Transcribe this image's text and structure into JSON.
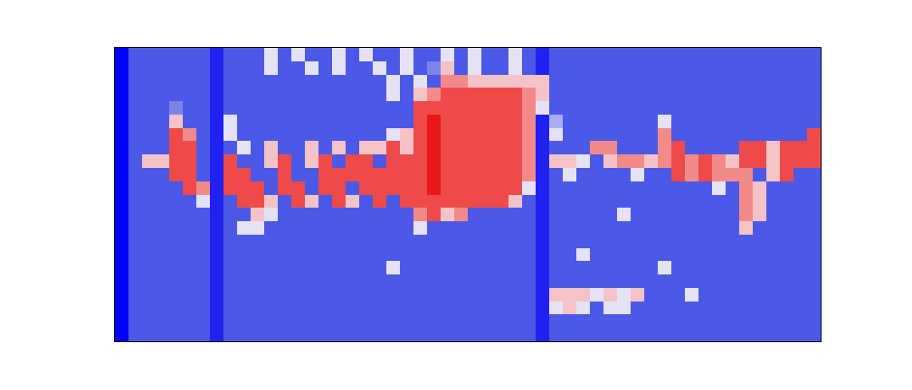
{
  "chart_data": {
    "type": "heatmap",
    "tick_labels": false,
    "xlim": [
      -0.5,
      51.5
    ],
    "ylim": [
      21.5,
      -0.5
    ],
    "zlim": [
      0,
      9
    ],
    "z": [
      [
        0,
        2,
        2,
        2,
        2,
        2,
        2,
        1,
        2,
        2,
        2,
        5,
        2,
        5,
        2,
        2,
        5,
        2,
        5,
        2,
        2,
        5,
        2,
        2,
        5,
        2,
        5,
        2,
        2,
        5,
        2,
        1,
        2,
        2,
        2,
        2,
        2,
        2,
        2,
        2,
        2,
        2,
        2,
        2,
        2,
        2,
        2,
        2,
        2,
        2,
        2,
        2
      ],
      [
        0,
        2,
        2,
        2,
        2,
        2,
        2,
        1,
        2,
        2,
        2,
        5,
        2,
        2,
        5,
        2,
        5,
        2,
        2,
        5,
        2,
        5,
        2,
        3,
        6,
        2,
        5,
        2,
        2,
        5,
        2,
        1,
        2,
        2,
        2,
        2,
        2,
        2,
        2,
        2,
        2,
        2,
        2,
        2,
        2,
        2,
        2,
        2,
        2,
        2,
        2,
        2
      ],
      [
        0,
        2,
        2,
        2,
        2,
        2,
        2,
        1,
        2,
        2,
        2,
        2,
        2,
        2,
        2,
        2,
        2,
        2,
        2,
        2,
        5,
        2,
        5,
        2,
        7,
        7,
        6,
        6,
        6,
        6,
        6,
        6,
        2,
        2,
        2,
        2,
        2,
        2,
        2,
        2,
        2,
        2,
        2,
        2,
        2,
        2,
        2,
        2,
        2,
        2,
        2,
        2
      ],
      [
        0,
        2,
        2,
        2,
        2,
        2,
        2,
        1,
        2,
        2,
        2,
        2,
        2,
        2,
        2,
        2,
        2,
        2,
        2,
        2,
        5,
        2,
        6,
        7,
        8,
        8,
        8,
        8,
        8,
        8,
        7,
        6,
        2,
        2,
        2,
        2,
        2,
        2,
        2,
        2,
        2,
        2,
        2,
        2,
        2,
        2,
        2,
        2,
        2,
        2,
        2,
        2
      ],
      [
        0,
        2,
        2,
        2,
        3,
        2,
        2,
        1,
        2,
        2,
        2,
        2,
        2,
        2,
        2,
        2,
        2,
        2,
        2,
        2,
        2,
        2,
        8,
        8,
        8,
        8,
        8,
        8,
        8,
        8,
        7,
        5,
        2,
        2,
        2,
        2,
        2,
        2,
        2,
        2,
        2,
        2,
        2,
        2,
        2,
        2,
        2,
        2,
        2,
        2,
        2,
        2
      ],
      [
        0,
        2,
        2,
        2,
        6,
        2,
        2,
        1,
        5,
        2,
        2,
        2,
        2,
        2,
        2,
        2,
        2,
        2,
        2,
        2,
        2,
        2,
        8,
        9,
        8,
        8,
        8,
        8,
        8,
        8,
        7,
        1,
        4,
        2,
        2,
        2,
        2,
        2,
        2,
        2,
        5,
        2,
        2,
        2,
        2,
        2,
        2,
        2,
        2,
        2,
        2,
        2
      ],
      [
        0,
        2,
        2,
        2,
        8,
        7,
        2,
        1,
        5,
        2,
        2,
        2,
        2,
        2,
        2,
        2,
        2,
        2,
        2,
        2,
        5,
        6,
        8,
        9,
        8,
        8,
        8,
        8,
        8,
        8,
        7,
        1,
        5,
        2,
        2,
        2,
        2,
        2,
        2,
        2,
        7,
        2,
        2,
        2,
        2,
        2,
        2,
        2,
        2,
        2,
        2,
        8
      ],
      [
        0,
        2,
        2,
        2,
        8,
        8,
        2,
        1,
        2,
        5,
        2,
        6,
        2,
        2,
        6,
        2,
        6,
        2,
        6,
        6,
        8,
        6,
        8,
        9,
        8,
        8,
        8,
        8,
        8,
        8,
        7,
        1,
        2,
        2,
        2,
        7,
        7,
        2,
        2,
        2,
        7,
        8,
        2,
        2,
        2,
        2,
        8,
        8,
        6,
        8,
        8,
        8
      ],
      [
        0,
        2,
        6,
        6,
        8,
        8,
        2,
        1,
        8,
        2,
        2,
        6,
        8,
        2,
        6,
        8,
        2,
        8,
        8,
        2,
        8,
        8,
        8,
        9,
        8,
        8,
        8,
        8,
        8,
        8,
        7,
        1,
        6,
        6,
        5,
        2,
        6,
        7,
        7,
        6,
        7,
        8,
        7,
        8,
        7,
        6,
        8,
        8,
        6,
        8,
        8,
        8
      ],
      [
        0,
        2,
        2,
        2,
        8,
        8,
        2,
        1,
        8,
        8,
        2,
        2,
        8,
        2,
        2,
        8,
        8,
        8,
        8,
        8,
        8,
        8,
        8,
        9,
        8,
        8,
        8,
        8,
        8,
        8,
        7,
        1,
        2,
        5,
        2,
        2,
        2,
        2,
        5,
        2,
        2,
        8,
        7,
        8,
        7,
        7,
        7,
        2,
        6,
        8,
        2,
        2
      ],
      [
        0,
        2,
        2,
        2,
        2,
        8,
        7,
        1,
        8,
        8,
        8,
        2,
        8,
        8,
        2,
        8,
        8,
        2,
        8,
        8,
        8,
        8,
        8,
        9,
        8,
        8,
        8,
        8,
        8,
        8,
        5,
        1,
        2,
        2,
        2,
        2,
        2,
        2,
        2,
        2,
        2,
        2,
        2,
        2,
        5,
        2,
        7,
        6,
        2,
        2,
        2,
        2
      ],
      [
        0,
        2,
        2,
        2,
        2,
        2,
        5,
        1,
        2,
        8,
        8,
        6,
        2,
        8,
        6,
        2,
        8,
        6,
        2,
        8,
        2,
        8,
        8,
        8,
        8,
        8,
        8,
        8,
        8,
        6,
        2,
        1,
        2,
        2,
        2,
        2,
        2,
        2,
        2,
        2,
        2,
        2,
        2,
        2,
        2,
        2,
        7,
        6,
        2,
        2,
        2,
        2
      ],
      [
        0,
        2,
        2,
        2,
        2,
        2,
        2,
        1,
        2,
        2,
        6,
        5,
        2,
        2,
        2,
        2,
        2,
        2,
        2,
        2,
        2,
        2,
        7,
        8,
        6,
        7,
        2,
        2,
        2,
        2,
        2,
        1,
        2,
        2,
        2,
        2,
        2,
        5,
        2,
        2,
        2,
        2,
        2,
        2,
        2,
        2,
        7,
        6,
        2,
        2,
        2,
        2
      ],
      [
        0,
        2,
        2,
        2,
        2,
        2,
        2,
        1,
        2,
        5,
        5,
        2,
        2,
        2,
        2,
        2,
        2,
        2,
        2,
        2,
        2,
        2,
        5,
        2,
        2,
        2,
        2,
        2,
        2,
        2,
        2,
        1,
        2,
        2,
        2,
        2,
        2,
        2,
        2,
        2,
        2,
        2,
        2,
        2,
        2,
        2,
        6,
        2,
        2,
        2,
        2,
        2
      ],
      [
        0,
        2,
        2,
        2,
        2,
        2,
        2,
        1,
        2,
        2,
        2,
        2,
        2,
        2,
        2,
        2,
        2,
        2,
        2,
        2,
        2,
        2,
        2,
        2,
        2,
        2,
        2,
        2,
        2,
        2,
        2,
        1,
        2,
        2,
        2,
        2,
        2,
        2,
        2,
        2,
        2,
        2,
        2,
        2,
        2,
        2,
        2,
        2,
        2,
        2,
        2,
        2
      ],
      [
        0,
        2,
        2,
        2,
        2,
        2,
        2,
        1,
        2,
        2,
        2,
        2,
        2,
        2,
        2,
        2,
        2,
        2,
        2,
        2,
        2,
        2,
        2,
        2,
        2,
        2,
        2,
        2,
        2,
        2,
        2,
        1,
        2,
        2,
        5,
        2,
        2,
        2,
        2,
        2,
        2,
        2,
        2,
        2,
        2,
        2,
        2,
        2,
        2,
        2,
        2,
        2
      ],
      [
        0,
        2,
        2,
        2,
        2,
        2,
        2,
        1,
        2,
        2,
        2,
        2,
        2,
        2,
        2,
        2,
        2,
        2,
        2,
        2,
        5,
        2,
        2,
        2,
        2,
        2,
        2,
        2,
        2,
        2,
        2,
        1,
        2,
        2,
        2,
        2,
        2,
        2,
        2,
        2,
        5,
        2,
        2,
        2,
        2,
        2,
        2,
        2,
        2,
        2,
        2,
        2
      ],
      [
        0,
        2,
        2,
        2,
        2,
        2,
        2,
        1,
        2,
        2,
        2,
        2,
        2,
        2,
        2,
        2,
        2,
        2,
        2,
        2,
        2,
        2,
        2,
        2,
        2,
        2,
        2,
        2,
        2,
        2,
        2,
        1,
        2,
        2,
        2,
        2,
        2,
        2,
        2,
        2,
        2,
        2,
        2,
        2,
        2,
        2,
        2,
        2,
        2,
        2,
        2,
        2
      ],
      [
        0,
        2,
        2,
        2,
        2,
        2,
        2,
        1,
        2,
        2,
        2,
        2,
        2,
        2,
        2,
        2,
        2,
        2,
        2,
        2,
        2,
        2,
        2,
        2,
        2,
        2,
        2,
        2,
        2,
        2,
        2,
        1,
        6,
        6,
        6,
        5,
        6,
        5,
        6,
        2,
        2,
        2,
        5,
        2,
        2,
        2,
        2,
        2,
        2,
        2,
        2,
        2
      ],
      [
        0,
        2,
        2,
        2,
        2,
        2,
        2,
        1,
        2,
        2,
        2,
        2,
        2,
        2,
        2,
        2,
        2,
        2,
        2,
        2,
        2,
        2,
        2,
        2,
        2,
        2,
        2,
        2,
        2,
        2,
        2,
        1,
        5,
        6,
        5,
        2,
        5,
        5,
        2,
        2,
        2,
        2,
        2,
        2,
        2,
        2,
        2,
        2,
        2,
        2,
        2,
        2
      ],
      [
        0,
        2,
        2,
        2,
        2,
        2,
        2,
        1,
        2,
        2,
        2,
        2,
        2,
        2,
        2,
        2,
        2,
        2,
        2,
        2,
        2,
        2,
        2,
        2,
        2,
        2,
        2,
        2,
        2,
        2,
        2,
        1,
        2,
        2,
        2,
        2,
        2,
        2,
        2,
        2,
        2,
        2,
        2,
        2,
        2,
        2,
        2,
        2,
        2,
        2,
        2,
        2
      ],
      [
        0,
        2,
        2,
        2,
        2,
        2,
        2,
        1,
        2,
        2,
        2,
        2,
        2,
        2,
        2,
        2,
        2,
        2,
        2,
        2,
        2,
        2,
        2,
        2,
        2,
        2,
        2,
        2,
        2,
        2,
        2,
        1,
        2,
        2,
        2,
        2,
        2,
        2,
        2,
        2,
        2,
        2,
        2,
        2,
        2,
        2,
        2,
        2,
        2,
        2,
        2,
        2
      ]
    ]
  }
}
